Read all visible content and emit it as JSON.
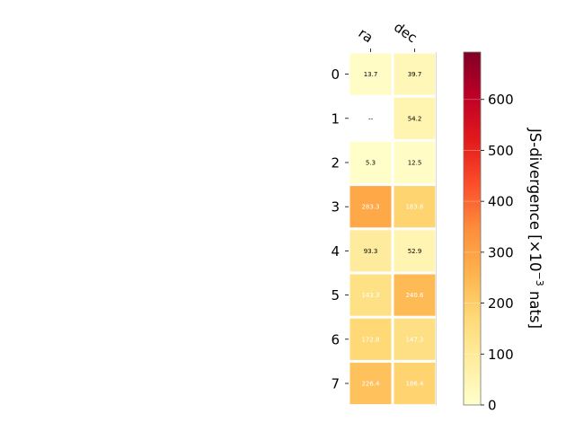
{
  "chart_data": {
    "type": "heatmap",
    "columns": [
      "ra",
      "dec"
    ],
    "rows": [
      "0",
      "1",
      "2",
      "3",
      "4",
      "5",
      "6",
      "7"
    ],
    "values": [
      [
        13.7,
        39.7
      ],
      [
        null,
        54.2
      ],
      [
        5.3,
        12.5
      ],
      [
        283.3,
        183.6
      ],
      [
        93.3,
        52.9
      ],
      [
        143.3,
        240.6
      ],
      [
        172.8,
        147.3
      ],
      [
        226.4,
        186.4
      ]
    ],
    "cell_labels": [
      [
        "13.7",
        "39.7"
      ],
      [
        "--",
        "54.2"
      ],
      [
        "5.3",
        "12.5"
      ],
      [
        "283.3",
        "183.6"
      ],
      [
        "93.3",
        "52.9"
      ],
      [
        "143.3",
        "240.6"
      ],
      [
        "172.8",
        "147.3"
      ],
      [
        "226.4",
        "186.4"
      ]
    ],
    "colormap": "YlOrRd",
    "colorbar": {
      "label": "JS-divergence [×10",
      "label_exponent": "−3",
      "label_suffix": " nats]",
      "range": [
        0,
        693
      ],
      "ticks": [
        0,
        100,
        200,
        300,
        400,
        500,
        600
      ],
      "tick_labels": [
        "0",
        "100",
        "200",
        "300",
        "400",
        "500",
        "600"
      ]
    },
    "title": "",
    "xlabel": "",
    "ylabel": ""
  }
}
